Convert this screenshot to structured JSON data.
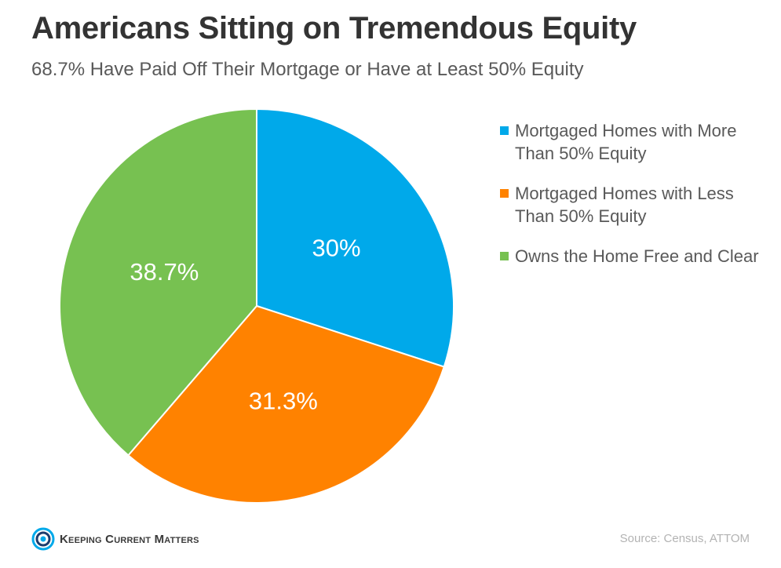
{
  "title": "Americans Sitting on Tremendous Equity",
  "subtitle": "68.7% Have Paid Off Their Mortgage or Have at Least 50% Equity",
  "chart_data": {
    "type": "pie",
    "title": "Americans Sitting on Tremendous Equity",
    "subtitle": "68.7% Have Paid Off Their Mortgage or Have at Least 50% Equity",
    "slices": [
      {
        "label": "Mortgaged Homes with More Than 50% Equity",
        "value": 30,
        "value_label": "30%",
        "color": "#00a9ea"
      },
      {
        "label": "Mortgaged Homes with Less Than 50% Equity",
        "value": 31.3,
        "value_label": "31.3%",
        "color": "#ff8200"
      },
      {
        "label": "Owns the Home Free and Clear",
        "value": 38.7,
        "value_label": "38.7%",
        "color": "#77c151"
      }
    ],
    "legend_position": "right"
  },
  "logo": {
    "text": "Keeping Current Matters",
    "color": "#00a9ea"
  },
  "source": "Source: Census, ATTOM"
}
